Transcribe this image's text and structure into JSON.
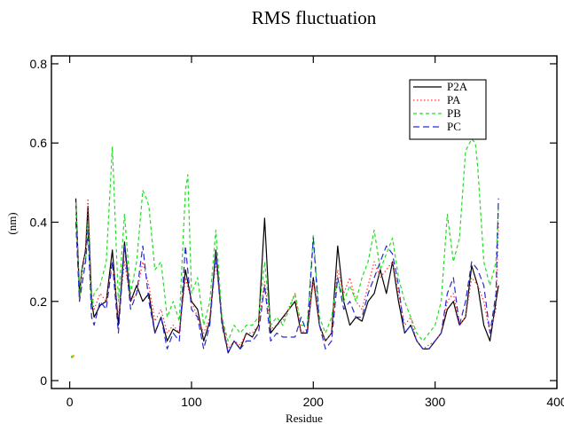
{
  "chart_data": {
    "type": "line",
    "title": "RMS fluctuation",
    "xlabel": "Residue",
    "ylabel": "(nm)",
    "xlim": [
      -15,
      400
    ],
    "ylim": [
      -0.02,
      0.82
    ],
    "x_ticks": [
      0,
      100,
      200,
      300,
      400
    ],
    "y_ticks": [
      0,
      0.2,
      0.4,
      0.6,
      0.8
    ],
    "x_tick_labels": [
      "0",
      "100",
      "200",
      "300",
      "400"
    ],
    "y_tick_labels": [
      "0",
      "0.2",
      "0.4",
      "0.6",
      "0.8"
    ],
    "grid": false,
    "legend_position": "top-right",
    "series": [
      {
        "name": "P2A",
        "color": "#000000",
        "dash": "solid",
        "x": [
          5,
          8,
          10,
          13,
          15,
          18,
          20,
          25,
          30,
          35,
          40,
          45,
          50,
          55,
          60,
          65,
          70,
          75,
          80,
          85,
          90,
          95,
          100,
          105,
          110,
          115,
          120,
          125,
          130,
          135,
          140,
          145,
          150,
          155,
          160,
          165,
          170,
          175,
          185,
          190,
          195,
          200,
          205,
          210,
          215,
          220,
          225,
          230,
          235,
          240,
          245,
          250,
          255,
          260,
          265,
          270,
          275,
          280,
          285,
          290,
          295,
          300,
          305,
          310,
          315,
          320,
          325,
          330,
          335,
          340,
          345,
          350,
          352
        ],
        "values": [
          0.46,
          0.22,
          0.28,
          0.33,
          0.44,
          0.2,
          0.16,
          0.19,
          0.2,
          0.33,
          0.14,
          0.35,
          0.2,
          0.24,
          0.2,
          0.22,
          0.12,
          0.16,
          0.1,
          0.13,
          0.12,
          0.28,
          0.2,
          0.18,
          0.1,
          0.15,
          0.33,
          0.15,
          0.07,
          0.1,
          0.08,
          0.12,
          0.11,
          0.14,
          0.41,
          0.12,
          0.14,
          0.16,
          0.2,
          0.12,
          0.12,
          0.26,
          0.14,
          0.1,
          0.12,
          0.34,
          0.2,
          0.14,
          0.16,
          0.15,
          0.2,
          0.22,
          0.28,
          0.22,
          0.3,
          0.2,
          0.12,
          0.14,
          0.1,
          0.08,
          0.08,
          0.1,
          0.12,
          0.18,
          0.2,
          0.14,
          0.16,
          0.29,
          0.24,
          0.14,
          0.1,
          0.2,
          0.24
        ]
      },
      {
        "name": "PA",
        "color": "#ff3030",
        "dash": "dotted",
        "x": [
          5,
          8,
          10,
          13,
          15,
          18,
          20,
          25,
          30,
          35,
          40,
          45,
          50,
          55,
          60,
          65,
          70,
          75,
          80,
          85,
          90,
          95,
          100,
          105,
          110,
          115,
          120,
          125,
          130,
          135,
          140,
          145,
          150,
          155,
          160,
          165,
          170,
          175,
          185,
          190,
          195,
          200,
          205,
          210,
          215,
          220,
          225,
          230,
          235,
          240,
          245,
          250,
          255,
          260,
          265,
          270,
          275,
          280,
          285,
          290,
          295,
          300,
          305,
          310,
          315,
          320,
          325,
          330,
          335,
          340,
          345,
          350,
          352
        ],
        "values": [
          0.42,
          0.2,
          0.26,
          0.34,
          0.46,
          0.22,
          0.18,
          0.22,
          0.2,
          0.3,
          0.16,
          0.3,
          0.2,
          0.22,
          0.3,
          0.24,
          0.15,
          0.18,
          0.12,
          0.14,
          0.12,
          0.26,
          0.2,
          0.16,
          0.12,
          0.16,
          0.3,
          0.16,
          0.08,
          0.1,
          0.09,
          0.12,
          0.12,
          0.14,
          0.25,
          0.13,
          0.14,
          0.15,
          0.22,
          0.12,
          0.13,
          0.25,
          0.14,
          0.1,
          0.12,
          0.28,
          0.22,
          0.26,
          0.2,
          0.18,
          0.24,
          0.3,
          0.26,
          0.28,
          0.3,
          0.22,
          0.14,
          0.16,
          0.1,
          0.08,
          0.09,
          0.1,
          0.12,
          0.2,
          0.22,
          0.14,
          0.16,
          0.26,
          0.24,
          0.2,
          0.12,
          0.18,
          0.4
        ]
      },
      {
        "name": "PB",
        "color": "#22dd22",
        "dash": "dashed",
        "x": [
          5,
          8,
          10,
          13,
          15,
          18,
          20,
          25,
          30,
          35,
          40,
          45,
          50,
          55,
          60,
          63,
          65,
          70,
          75,
          80,
          85,
          90,
          95,
          97,
          100,
          105,
          110,
          115,
          120,
          125,
          130,
          135,
          140,
          145,
          150,
          155,
          160,
          165,
          170,
          175,
          185,
          190,
          195,
          200,
          205,
          210,
          215,
          220,
          225,
          230,
          235,
          240,
          245,
          250,
          255,
          260,
          265,
          270,
          275,
          280,
          285,
          290,
          295,
          300,
          305,
          310,
          315,
          320,
          325,
          330,
          333,
          335,
          340,
          345,
          350,
          352
        ],
        "values": [
          0.45,
          0.2,
          0.28,
          0.3,
          0.4,
          0.18,
          0.22,
          0.24,
          0.3,
          0.59,
          0.2,
          0.42,
          0.22,
          0.3,
          0.48,
          0.46,
          0.44,
          0.28,
          0.3,
          0.16,
          0.2,
          0.15,
          0.48,
          0.52,
          0.22,
          0.26,
          0.14,
          0.2,
          0.38,
          0.16,
          0.1,
          0.14,
          0.12,
          0.14,
          0.14,
          0.16,
          0.3,
          0.14,
          0.16,
          0.14,
          0.22,
          0.14,
          0.14,
          0.37,
          0.16,
          0.12,
          0.16,
          0.26,
          0.2,
          0.24,
          0.2,
          0.26,
          0.3,
          0.38,
          0.28,
          0.32,
          0.36,
          0.26,
          0.2,
          0.16,
          0.12,
          0.1,
          0.12,
          0.14,
          0.2,
          0.42,
          0.3,
          0.36,
          0.58,
          0.61,
          0.6,
          0.54,
          0.3,
          0.24,
          0.3,
          0.44
        ]
      },
      {
        "name": "PC",
        "color": "#2a2ad0",
        "dash": "long-dash",
        "x": [
          5,
          8,
          10,
          13,
          15,
          18,
          20,
          25,
          30,
          35,
          40,
          45,
          50,
          55,
          60,
          65,
          70,
          75,
          80,
          85,
          90,
          95,
          100,
          105,
          110,
          115,
          120,
          125,
          130,
          135,
          140,
          145,
          150,
          155,
          160,
          165,
          170,
          175,
          185,
          190,
          195,
          200,
          205,
          210,
          215,
          220,
          225,
          230,
          235,
          240,
          245,
          250,
          255,
          260,
          265,
          270,
          275,
          280,
          285,
          290,
          295,
          300,
          305,
          310,
          315,
          320,
          325,
          330,
          335,
          340,
          345,
          350,
          352
        ],
        "values": [
          0.4,
          0.2,
          0.24,
          0.3,
          0.38,
          0.16,
          0.14,
          0.2,
          0.18,
          0.3,
          0.12,
          0.34,
          0.18,
          0.22,
          0.34,
          0.2,
          0.12,
          0.16,
          0.08,
          0.12,
          0.1,
          0.34,
          0.18,
          0.16,
          0.08,
          0.14,
          0.32,
          0.14,
          0.07,
          0.1,
          0.08,
          0.1,
          0.1,
          0.12,
          0.24,
          0.1,
          0.12,
          0.11,
          0.11,
          0.16,
          0.12,
          0.36,
          0.14,
          0.08,
          0.1,
          0.26,
          0.18,
          0.2,
          0.16,
          0.16,
          0.22,
          0.26,
          0.3,
          0.34,
          0.32,
          0.24,
          0.12,
          0.14,
          0.1,
          0.08,
          0.08,
          0.1,
          0.12,
          0.22,
          0.26,
          0.14,
          0.2,
          0.3,
          0.28,
          0.24,
          0.12,
          0.22,
          0.46
        ]
      }
    ],
    "stray_points": [
      {
        "x": 2,
        "value": 0.06,
        "color": "#22dd22"
      },
      {
        "x": 3,
        "value": 0.062,
        "color": "#ffaa00"
      }
    ]
  }
}
